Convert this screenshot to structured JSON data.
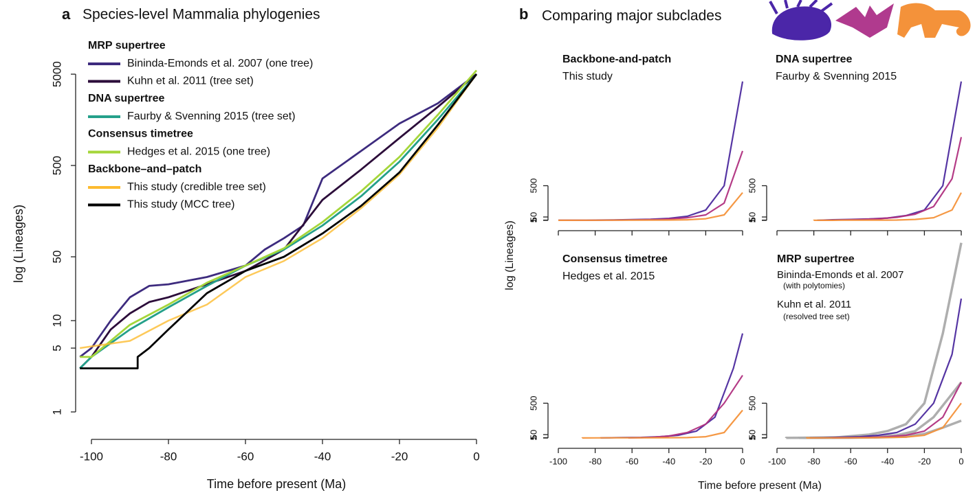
{
  "chart_data": [
    {
      "type": "line",
      "panel_label": "a",
      "title": "Species-level Mammalia phylogenies",
      "x_label": "Time before present (Ma)",
      "y_label": "log (Lineages)",
      "log_y": true,
      "xlim": [
        -104,
        0
      ],
      "ylim": [
        1,
        10000
      ],
      "xticks": [
        -100,
        -80,
        -60,
        -40,
        -20,
        0
      ],
      "yticks": [
        1,
        5,
        10,
        50,
        500,
        5000
      ],
      "groups": [
        {
          "title": "MRP supertree",
          "series": [
            {
              "name": "Bininda-Emonds et al. 2007 (one tree)",
              "color": "#3d2b7e",
              "x": [
                -103,
                -100,
                -95,
                -90,
                -85,
                -80,
                -70,
                -60,
                -55,
                -50,
                -45,
                -40,
                -30,
                -20,
                -10,
                0
              ],
              "values": [
                4,
                5,
                10,
                18,
                24,
                25,
                30,
                40,
                60,
                80,
                110,
                360,
                720,
                1440,
                2400,
                5000
              ]
            },
            {
              "name": "Kuhn et al. 2011 (tree set)",
              "color": "#2c0d3a",
              "x": [
                -103,
                -100,
                -95,
                -90,
                -85,
                -80,
                -70,
                -60,
                -50,
                -40,
                -30,
                -20,
                -10,
                0
              ],
              "values": [
                3,
                4,
                8,
                12,
                16,
                18,
                25,
                35,
                60,
                210,
                450,
                1000,
                2200,
                5000
              ]
            }
          ]
        },
        {
          "title": "DNA supertree",
          "series": [
            {
              "name": "Faurby & Svenning 2015 (tree set)",
              "color": "#25a08a",
              "x": [
                -103,
                -100,
                -90,
                -80,
                -70,
                -60,
                -50,
                -40,
                -30,
                -20,
                -10,
                0
              ],
              "values": [
                3,
                4,
                8,
                14,
                24,
                40,
                60,
                110,
                230,
                550,
                1600,
                5000
              ]
            }
          ]
        },
        {
          "title": "Consensus timetree",
          "series": [
            {
              "name": "Hedges et al. 2015 (one tree)",
              "color": "#a5d63a",
              "x": [
                -103,
                -100,
                -90,
                -80,
                -70,
                -60,
                -50,
                -40,
                -30,
                -20,
                -10,
                0
              ],
              "values": [
                4,
                4,
                9,
                15,
                26,
                40,
                62,
                120,
                260,
                620,
                1800,
                5500
              ]
            }
          ]
        },
        {
          "title": "Backbone–and–patch",
          "series": [
            {
              "name": "This study (credible tree set)",
              "color": "#fdbb2f",
              "x": [
                -103,
                -90,
                -80,
                -70,
                -60,
                -50,
                -40,
                -30,
                -20,
                -10,
                0
              ],
              "values": [
                5,
                6,
                10,
                15,
                30,
                45,
                80,
                170,
                400,
                1300,
                5000
              ]
            },
            {
              "name": "This study (MCC tree)",
              "color": "#000000",
              "x": [
                -103,
                -88,
                -88,
                -85,
                -80,
                -70,
                -60,
                -50,
                -40,
                -30,
                -20,
                -10,
                0
              ],
              "values": [
                3,
                3,
                4,
                5,
                8,
                20,
                35,
                50,
                90,
                180,
                420,
                1400,
                5000
              ]
            }
          ]
        }
      ]
    },
    {
      "type": "line",
      "panel_label": "b",
      "title": "Comparing major subclades",
      "x_label": "Time before present (Ma)",
      "y_label": "log (Lineages)",
      "log_y": true,
      "panels": [
        {
          "title": "Backbone-and-patch",
          "subtitle": "This study",
          "xlim": [
            -100,
            0
          ],
          "ylim": [
            1,
            2600
          ],
          "xticks": [
            -100,
            -80,
            -60,
            -40,
            -20,
            0
          ],
          "yticks": [
            1,
            5,
            50,
            500
          ],
          "xtick_labels": false,
          "series": [
            {
              "color": "#4c2a9e",
              "x": [
                -100,
                -85,
                -80,
                -70,
                -60,
                -50,
                -40,
                -30,
                -20,
                -10,
                0
              ],
              "values": [
                2,
                2,
                5,
                8,
                12,
                18,
                30,
                60,
                150,
                500,
                2000
              ]
            },
            {
              "color": "#b0307f",
              "x": [
                -100,
                -85,
                -75,
                -65,
                -55,
                -45,
                -40,
                -30,
                -20,
                -10,
                0
              ],
              "values": [
                2,
                2,
                4,
                6,
                10,
                15,
                22,
                40,
                80,
                250,
                1000
              ]
            },
            {
              "color": "#f4923a",
              "x": [
                -100,
                -80,
                -70,
                -60,
                -40,
                -30,
                -20,
                -10,
                0
              ],
              "values": [
                2,
                3,
                4,
                5,
                6,
                10,
                25,
                80,
                400
              ]
            }
          ]
        },
        {
          "title": "DNA supertree",
          "subtitle": "Faurby & Svenning 2015",
          "xlim": [
            -100,
            0
          ],
          "ylim": [
            1,
            2600
          ],
          "xticks": [
            -100,
            -80,
            -60,
            -40,
            -20,
            0
          ],
          "yticks": [
            1,
            5,
            50,
            500
          ],
          "xtick_labels": false,
          "series": [
            {
              "color": "#4c2a9e",
              "x": [
                -78,
                -78,
                -75,
                -70,
                -60,
                -50,
                -40,
                -30,
                -20,
                -10,
                0
              ],
              "values": [
                1,
                3,
                5,
                10,
                15,
                22,
                35,
                70,
                150,
                500,
                2000
              ]
            },
            {
              "color": "#b0307f",
              "x": [
                -76,
                -76,
                -72,
                -65,
                -55,
                -45,
                -35,
                -25,
                -15,
                -5,
                0
              ],
              "values": [
                1,
                2,
                4,
                8,
                14,
                25,
                45,
                90,
                200,
                600,
                1200
              ]
            },
            {
              "color": "#f4923a",
              "x": [
                -80,
                -80,
                -70,
                -65,
                -40,
                -35,
                -25,
                -15,
                -5,
                0
              ],
              "values": [
                1,
                2,
                2,
                4,
                5,
                6,
                15,
                40,
                150,
                400
              ]
            }
          ]
        },
        {
          "title": "Consensus timetree",
          "subtitle": "Hedges et al. 2015",
          "xlim": [
            -100,
            0
          ],
          "ylim": [
            1,
            2600
          ],
          "xticks": [
            -100,
            -80,
            -60,
            -40,
            -20,
            0
          ],
          "yticks": [
            1,
            5,
            50,
            500
          ],
          "xtick_labels": true,
          "series": [
            {
              "color": "#4c2a9e",
              "x": [
                -77,
                -77,
                -72,
                -65,
                -55,
                -45,
                -35,
                -25,
                -15,
                -5,
                0
              ],
              "values": [
                1,
                3,
                5,
                8,
                10,
                20,
                40,
                100,
                300,
                1000,
                1500
              ]
            },
            {
              "color": "#b0307f",
              "x": [
                -62,
                -62,
                -55,
                -50,
                -40,
                -30,
                -20,
                -10,
                0
              ],
              "values": [
                1,
                3,
                6,
                10,
                30,
                80,
                200,
                500,
                900
              ]
            },
            {
              "color": "#f4923a",
              "x": [
                -87,
                -87,
                -80,
                -70,
                -60,
                -45,
                -30,
                -20,
                -10,
                0
              ],
              "values": [
                1,
                2,
                3,
                4,
                4,
                5,
                7,
                20,
                80,
                400
              ]
            }
          ]
        },
        {
          "title": "MRP supertree",
          "xlim": [
            -100,
            0
          ],
          "ylim": [
            1,
            2600
          ],
          "xticks": [
            -100,
            -80,
            -60,
            -40,
            -20,
            0
          ],
          "yticks": [
            1,
            5,
            50,
            500
          ],
          "xtick_labels": true,
          "annotations": [
            {
              "text": "Bininda-Emonds et al. 2007",
              "color": "#999999",
              "size": "normal"
            },
            {
              "text": "(with polytomies)",
              "color": "#999999",
              "size": "small"
            },
            {
              "text": "Kuhn et al. 2011",
              "color": "#111111",
              "size": "normal"
            },
            {
              "text": "(resolved tree set)",
              "color": "#111111",
              "size": "small"
            }
          ],
          "series": [
            {
              "color": "#aaaaaa",
              "x": [
                -95,
                -95,
                -85,
                -70,
                -50,
                -40,
                -30,
                -20,
                -10,
                0
              ],
              "values": [
                1,
                3,
                5,
                5,
                50,
                100,
                200,
                500,
                1500,
                2800
              ]
            },
            {
              "color": "#aaaaaa",
              "x": [
                -86,
                -86,
                -75,
                -60,
                -45,
                -35,
                -25,
                -15,
                0
              ],
              "values": [
                1,
                4,
                8,
                15,
                25,
                40,
                100,
                300,
                800
              ]
            },
            {
              "color": "#aaaaaa",
              "x": [
                -88,
                -88,
                -70,
                -60,
                -45,
                -30,
                -20,
                -10,
                0
              ],
              "values": [
                1,
                3,
                4,
                5,
                10,
                20,
                60,
                150,
                250
              ]
            },
            {
              "color": "#4c2a9e",
              "x": [
                -82,
                -82,
                -75,
                -65,
                -55,
                -45,
                -35,
                -25,
                -15,
                -5,
                0
              ],
              "values": [
                1,
                3,
                5,
                12,
                20,
                40,
                80,
                200,
                500,
                1200,
                2000
              ]
            },
            {
              "color": "#b0307f",
              "x": [
                -70,
                -70,
                -60,
                -50,
                -40,
                -30,
                -20,
                -10,
                0
              ],
              "values": [
                1,
                3,
                5,
                10,
                20,
                40,
                100,
                300,
                800
              ]
            },
            {
              "color": "#f4923a",
              "x": [
                -84,
                -84,
                -75,
                -60,
                -50,
                -40,
                -30,
                -20,
                -10,
                0
              ],
              "values": [
                1,
                2,
                3,
                4,
                5,
                8,
                15,
                40,
                150,
                500
              ]
            }
          ]
        }
      ]
    }
  ]
}
